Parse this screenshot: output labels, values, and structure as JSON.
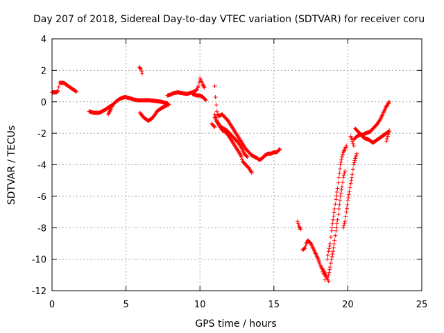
{
  "chart_data": {
    "type": "scatter",
    "title": "Day 207 of 2018, Sidereal Day-to-day VTEC variation (SDTVAR) for receiver coru",
    "xlabel": "GPS time / hours",
    "ylabel": "SDTVAR / TECUs",
    "xlim": [
      0,
      25
    ],
    "ylim": [
      -12,
      4
    ],
    "xticks": [
      0,
      5,
      10,
      15,
      20,
      25
    ],
    "yticks": [
      -12,
      -10,
      -8,
      -6,
      -4,
      -2,
      0,
      2,
      4
    ],
    "grid": true,
    "marker": "+",
    "series": [
      {
        "name": "SDTVAR",
        "color": "#ff0000",
        "segments": [
          [
            [
              0.0,
              0.6
            ],
            [
              0.3,
              0.6
            ],
            [
              0.4,
              0.7
            ],
            [
              0.5,
              1.2
            ],
            [
              0.8,
              1.2
            ],
            [
              1.1,
              1.0
            ],
            [
              1.4,
              0.8
            ],
            [
              1.65,
              0.65
            ]
          ],
          [
            [
              2.5,
              -0.6
            ],
            [
              2.8,
              -0.7
            ],
            [
              3.2,
              -0.7
            ],
            [
              3.6,
              -0.5
            ],
            [
              3.9,
              -0.3
            ],
            [
              4.1,
              -0.2
            ],
            [
              4.3,
              0.0
            ],
            [
              4.6,
              0.2
            ],
            [
              4.9,
              0.3
            ],
            [
              5.2,
              0.25
            ],
            [
              5.5,
              0.15
            ],
            [
              5.8,
              0.1
            ],
            [
              6.2,
              0.1
            ],
            [
              6.6,
              0.1
            ],
            [
              7.0,
              0.05
            ],
            [
              7.4,
              0.0
            ],
            [
              7.8,
              -0.1
            ],
            [
              7.9,
              -0.2
            ]
          ],
          [
            [
              3.8,
              -0.8
            ],
            [
              3.9,
              -0.6
            ],
            [
              4.0,
              -0.4
            ],
            [
              4.1,
              -0.2
            ]
          ],
          [
            [
              5.95,
              -0.7
            ],
            [
              6.2,
              -1.0
            ],
            [
              6.5,
              -1.2
            ],
            [
              6.7,
              -1.1
            ],
            [
              6.9,
              -0.9
            ],
            [
              7.1,
              -0.6
            ],
            [
              7.4,
              -0.4
            ],
            [
              7.8,
              -0.2
            ]
          ],
          [
            [
              5.9,
              2.2
            ],
            [
              6.0,
              2.1
            ],
            [
              6.1,
              1.8
            ]
          ],
          [
            [
              7.8,
              0.4
            ],
            [
              8.0,
              0.45
            ],
            [
              8.2,
              0.55
            ],
            [
              8.5,
              0.6
            ],
            [
              8.8,
              0.55
            ],
            [
              9.1,
              0.5
            ],
            [
              9.5,
              0.6
            ],
            [
              9.7,
              0.7
            ],
            [
              9.8,
              0.8
            ],
            [
              9.9,
              1.0
            ],
            [
              10.0,
              1.5
            ],
            [
              10.1,
              1.3
            ],
            [
              10.2,
              1.1
            ],
            [
              10.3,
              0.9
            ]
          ],
          [
            [
              9.5,
              0.5
            ],
            [
              9.8,
              0.4
            ],
            [
              10.0,
              0.4
            ],
            [
              10.2,
              0.3
            ],
            [
              10.4,
              0.1
            ]
          ],
          [
            [
              11.0,
              1.0
            ],
            [
              11.05,
              0.3
            ],
            [
              11.1,
              -0.2
            ],
            [
              11.15,
              -0.6
            ],
            [
              11.2,
              -0.8
            ],
            [
              11.3,
              -0.9
            ],
            [
              11.5,
              -0.8
            ],
            [
              11.7,
              -1.0
            ],
            [
              11.9,
              -1.2
            ],
            [
              12.1,
              -1.5
            ],
            [
              12.3,
              -1.8
            ],
            [
              12.5,
              -2.1
            ],
            [
              12.7,
              -2.4
            ],
            [
              12.9,
              -2.7
            ],
            [
              13.1,
              -3.0
            ],
            [
              13.3,
              -3.2
            ],
            [
              13.5,
              -3.4
            ],
            [
              13.7,
              -3.5
            ],
            [
              13.9,
              -3.6
            ],
            [
              14.0,
              -3.7
            ],
            [
              14.2,
              -3.6
            ],
            [
              14.4,
              -3.4
            ],
            [
              14.6,
              -3.3
            ],
            [
              14.8,
              -3.3
            ],
            [
              15.0,
              -3.2
            ],
            [
              15.2,
              -3.2
            ],
            [
              15.4,
              -3.0
            ]
          ],
          [
            [
              11.0,
              -1.0
            ],
            [
              11.1,
              -1.2
            ],
            [
              11.3,
              -1.5
            ],
            [
              11.5,
              -1.8
            ],
            [
              11.7,
              -1.9
            ],
            [
              11.9,
              -2.1
            ],
            [
              12.1,
              -2.4
            ],
            [
              12.3,
              -2.7
            ],
            [
              12.5,
              -3.0
            ],
            [
              12.7,
              -3.3
            ],
            [
              12.8,
              -3.5
            ],
            [
              12.9,
              -3.8
            ],
            [
              13.1,
              -4.0
            ],
            [
              13.3,
              -4.2
            ],
            [
              13.5,
              -4.5
            ]
          ],
          [
            [
              11.0,
              -0.8
            ],
            [
              11.2,
              -1.3
            ],
            [
              11.4,
              -1.6
            ],
            [
              11.6,
              -1.7
            ],
            [
              11.8,
              -1.8
            ],
            [
              12.0,
              -2.0
            ],
            [
              12.2,
              -2.2
            ],
            [
              12.4,
              -2.4
            ],
            [
              12.6,
              -2.6
            ],
            [
              12.8,
              -2.9
            ],
            [
              13.0,
              -3.3
            ],
            [
              13.2,
              -3.5
            ]
          ],
          [
            [
              10.8,
              -1.4
            ],
            [
              10.9,
              -1.5
            ],
            [
              11.0,
              -1.6
            ]
          ],
          [
            [
              16.6,
              -7.6
            ],
            [
              16.7,
              -7.9
            ],
            [
              16.8,
              -8.1
            ]
          ],
          [
            [
              16.95,
              -9.4
            ],
            [
              17.1,
              -9.3
            ],
            [
              17.2,
              -9.0
            ],
            [
              17.3,
              -8.8
            ],
            [
              17.5,
              -9.0
            ],
            [
              17.7,
              -9.4
            ],
            [
              17.9,
              -9.8
            ],
            [
              18.0,
              -10.0
            ],
            [
              18.1,
              -10.3
            ],
            [
              18.2,
              -10.5
            ],
            [
              18.4,
              -10.8
            ],
            [
              18.5,
              -11.0
            ],
            [
              18.6,
              -11.2
            ],
            [
              18.7,
              -11.4
            ]
          ],
          [
            [
              18.3,
              -10.8
            ],
            [
              18.4,
              -11.0
            ],
            [
              18.45,
              -11.3
            ]
          ],
          [
            [
              18.7,
              -11.0
            ],
            [
              18.8,
              -10.5
            ],
            [
              18.9,
              -10.0
            ],
            [
              19.0,
              -9.5
            ],
            [
              19.1,
              -8.8
            ],
            [
              19.2,
              -8.2
            ],
            [
              19.3,
              -7.5
            ],
            [
              19.4,
              -6.8
            ],
            [
              19.5,
              -6.0
            ],
            [
              19.6,
              -5.4
            ],
            [
              19.7,
              -4.8
            ],
            [
              19.8,
              -4.4
            ]
          ],
          [
            [
              18.6,
              -10.0
            ],
            [
              18.7,
              -9.5
            ],
            [
              18.8,
              -9.0
            ],
            [
              18.9,
              -8.2
            ],
            [
              19.0,
              -7.5
            ],
            [
              19.1,
              -6.8
            ],
            [
              19.2,
              -6.2
            ],
            [
              19.3,
              -5.5
            ],
            [
              19.4,
              -4.8
            ],
            [
              19.5,
              -4.0
            ],
            [
              19.6,
              -3.5
            ],
            [
              19.7,
              -3.2
            ],
            [
              19.8,
              -3.0
            ],
            [
              19.9,
              -2.8
            ]
          ],
          [
            [
              19.7,
              -8.0
            ],
            [
              19.8,
              -7.6
            ],
            [
              19.9,
              -7.0
            ],
            [
              20.0,
              -6.3
            ],
            [
              20.1,
              -5.7
            ],
            [
              20.2,
              -5.2
            ],
            [
              20.3,
              -4.6
            ],
            [
              20.4,
              -4.0
            ],
            [
              20.5,
              -3.6
            ],
            [
              20.6,
              -3.3
            ]
          ],
          [
            [
              20.2,
              -2.2
            ],
            [
              20.3,
              -2.5
            ],
            [
              20.4,
              -2.8
            ]
          ],
          [
            [
              20.5,
              -1.7
            ],
            [
              20.8,
              -2.0
            ],
            [
              21.1,
              -2.3
            ],
            [
              21.4,
              -2.4
            ],
            [
              21.7,
              -2.6
            ],
            [
              22.0,
              -2.4
            ],
            [
              22.3,
              -2.2
            ],
            [
              22.6,
              -2.0
            ],
            [
              22.8,
              -1.9
            ]
          ],
          [
            [
              20.4,
              -2.4
            ],
            [
              20.6,
              -2.2
            ],
            [
              20.8,
              -2.1
            ],
            [
              21.0,
              -2.1
            ],
            [
              21.2,
              -2.0
            ],
            [
              21.5,
              -1.9
            ],
            [
              21.8,
              -1.6
            ],
            [
              22.0,
              -1.4
            ],
            [
              22.2,
              -1.1
            ],
            [
              22.4,
              -0.7
            ],
            [
              22.6,
              -0.3
            ],
            [
              22.8,
              0.0
            ]
          ],
          [
            [
              22.6,
              -2.5
            ],
            [
              22.7,
              -2.2
            ],
            [
              22.8,
              -1.8
            ]
          ]
        ]
      }
    ]
  }
}
